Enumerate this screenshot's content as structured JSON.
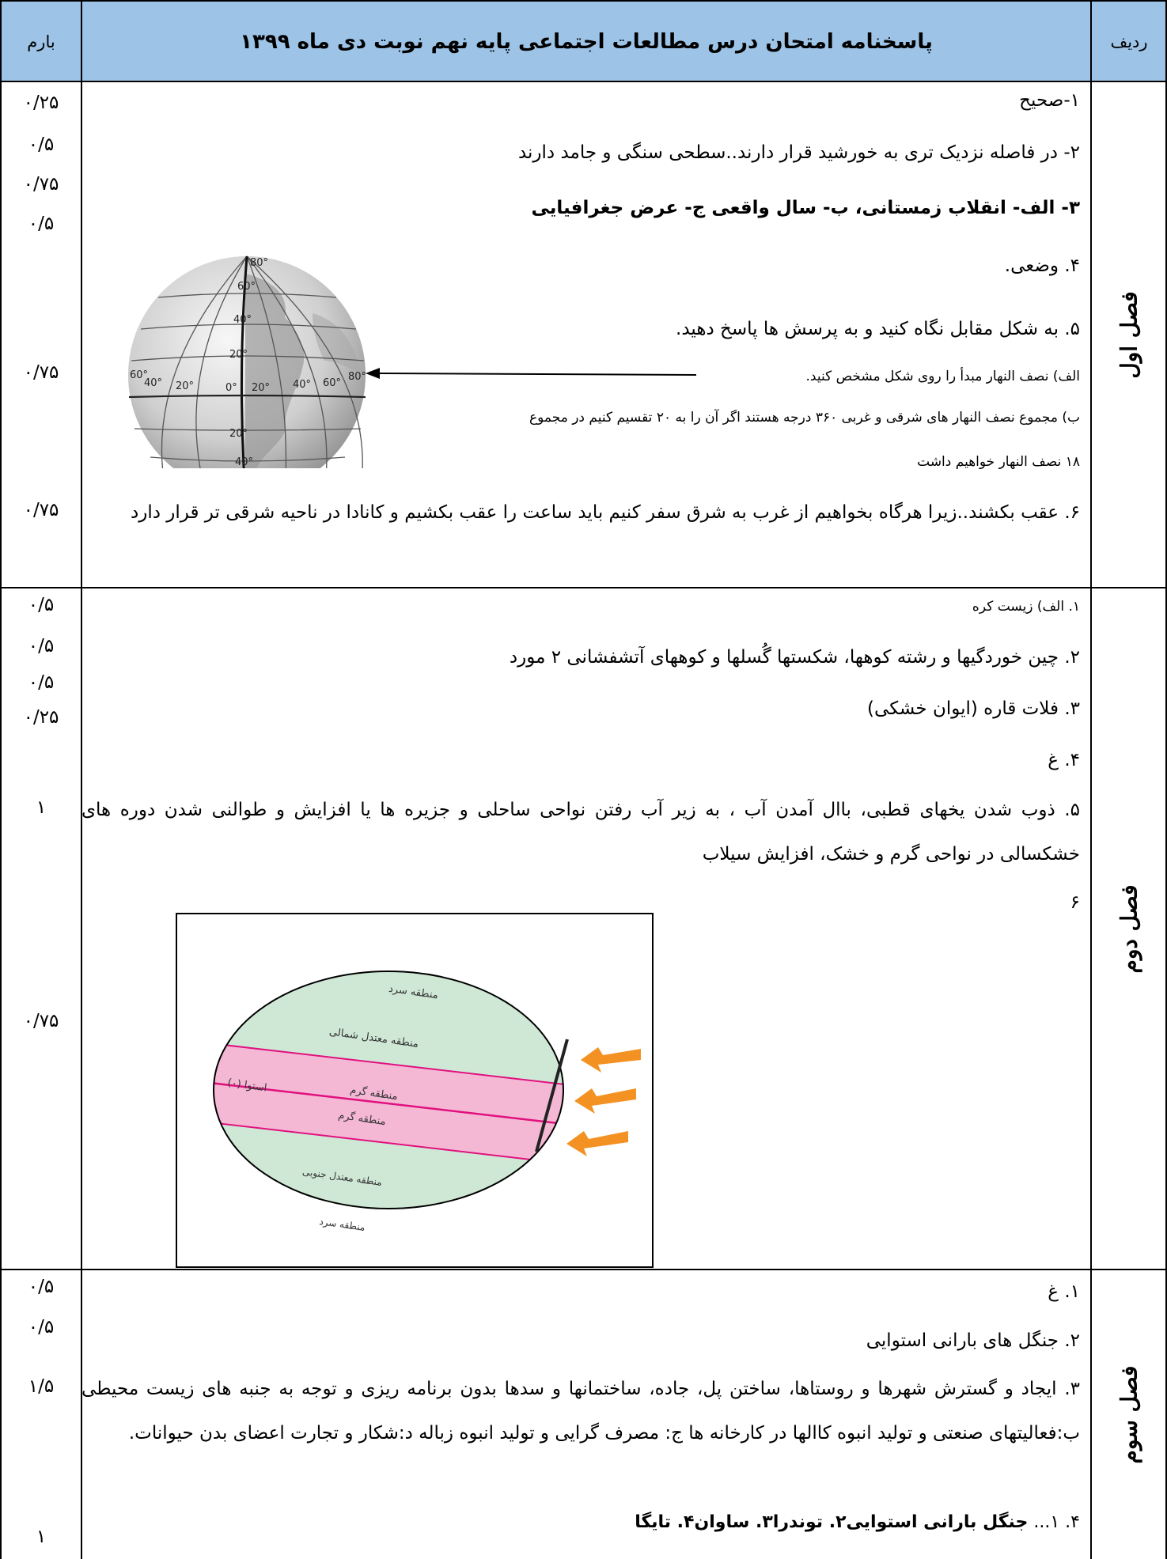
{
  "header": {
    "score_label": "بارم",
    "title": "پاسخنامه امتحان درس مطالعات اجتماعی پایه نهم  نوبت دی ماه ۱۳۹۹",
    "row_label": "ردیف"
  },
  "sections": {
    "one": {
      "label": "فصل اول",
      "scores": [
        "۰/۲۵",
        "۰/۵",
        "۰/۷۵",
        "۰/۵",
        "۰/۷۵",
        "۰/۷۵"
      ],
      "answers": {
        "a1": "۱-صحیح",
        "a2": "۲- در فاصله نزدیک تری به خورشید قرار دارند..سطحی سنگی و جامد دارند",
        "a3": "۳- الف-  انقلاب زمستانی،   ب-  سال واقعی ج- عرض جغرافیایی",
        "a4": "۴. وضعی.",
        "a5": "۵. به شکل مقابل نگاه کنید و به پرسش ها پاسخ دهید.",
        "a5a": "الف) نصف النهار مبدأ را روی شکل مشخص کنید.",
        "a5b1": "ب) مجموع نصف النهار های شرقی و غربی  ۳۶۰ درجه هستند اگر آن را به ۲۰ تقسیم کنیم در مجموع",
        "a5b2": "۱۸ نصف النهار خواهیم داشت",
        "a6": "۶. عقب بکشند..زیرا هرگاه بخواهیم از غرب به شرق سفر کنیم باید ساعت را عقب بکشیم و کانادا در ناحیه شرقی تر قرار دارد"
      },
      "globe_labels": {
        "lat": [
          "80°",
          "60°",
          "40°",
          "20°",
          "0°",
          "20°",
          "40°"
        ],
        "lon": [
          "60°",
          "40°",
          "20°",
          "20°",
          "40°",
          "60°",
          "80°"
        ]
      }
    },
    "two": {
      "label": "فصل دوم",
      "scores": [
        "۰/۵",
        "۰/۵",
        "۰/۵",
        "۰/۲۵",
        "۱",
        "۰/۷۵"
      ],
      "answers": {
        "a1": "۱. الف) زیست کره",
        "a2": "۲. چین خوردگیها و رشته کوهها، شکستها گُسلها و کوههای آتشفشانی ۲ مورد",
        "a3": "۳. فلات قاره (ایوان خشکی)",
        "a4": "۴. غ",
        "a5": "۵. ذوب شدن یخهای قطبی، باال آمدن آب ، به زیر آب رفتن نواحی ساحلی و جزیره ها یا افزایش و طوالنی شدن دوره های خشکسالی در نواحی گرم و خشک، افزایش سیلاب",
        "a6": "۶"
      },
      "zones": {
        "cold_north": "منطقه سرد",
        "temperate_north": "منطقه معتدل شمالی",
        "equator": "استوا (۰)",
        "hot_1": "منطقه گرم",
        "hot_2": "منطقه گرم",
        "temperate_south": "منطقه معتدل جنوبی",
        "cold_south": "منطقه سرد"
      }
    },
    "three": {
      "label": "فصل سوم",
      "scores": [
        "۰/۵",
        "۰/۵",
        "۱/۵",
        "۱"
      ],
      "answers": {
        "a1": "۱. غ",
        "a2": "۲. جنگل های بارانی استوایی",
        "a3": "۳. ایجاد و گسترش شهرها و روستاها، ساختن پل، جاده، ساختمانها و سدها بدون برنامه ریزی و توجه به جنبه های زیست محیطی ب:فعالیتهای صنعتی و تولید انبوه کاالها در کارخانه ها ج: مصرف گرایی و تولید انبوه زباله د:شکار و تجارت اعضای بدن حیوانات.",
        "a4": "۴. ۱... جنگل بارانی استوایی۲. توندرا۳. ساوان۴. تایگا"
      },
      "a4_bold": "جنگل بارانی استوایی۲. توندرا۳. ساوان۴. تایگا",
      "a4_prefix": "۴. ۱... "
    }
  },
  "colors": {
    "header_bg": "#9dc3e6",
    "cold_zone": "#5bc0eb",
    "temperate_zone": "#cfe8d6",
    "hot_zone": "#f4b8d4",
    "equator_line": "#e0117f",
    "sun_arrows": "#f39222"
  }
}
